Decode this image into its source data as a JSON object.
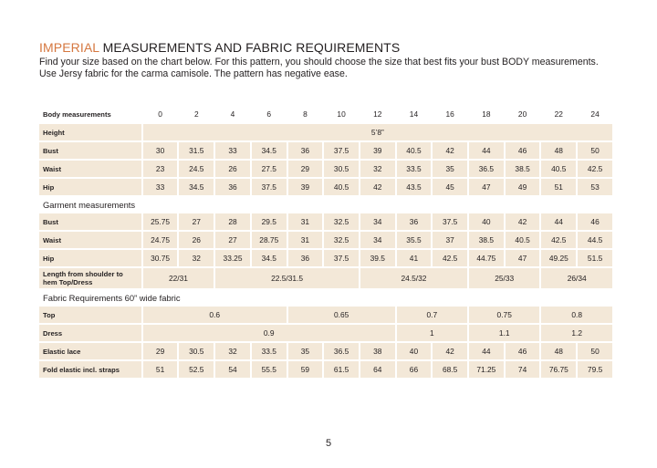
{
  "header": {
    "brand": "IMPERIAL",
    "title_rest": " MEASUREMENTS AND FABRIC REQUIREMENTS",
    "intro_line1": "Find your size based on the chart below. For this pattern, you should choose the size that best fits your bust BODY measurements.",
    "intro_line2": "Use Jersy fabric for the carma camisole. The pattern has negative ease."
  },
  "table": {
    "body_label": "Body measurements",
    "sizes": [
      "0",
      "2",
      "4",
      "6",
      "8",
      "10",
      "12",
      "14",
      "16",
      "18",
      "20",
      "22",
      "24"
    ],
    "height_label": "Height",
    "height_value": "5’8”",
    "bust_label": "Bust",
    "bust": [
      "30",
      "31.5",
      "33",
      "34.5",
      "36",
      "37.5",
      "39",
      "40.5",
      "42",
      "44",
      "46",
      "48",
      "50"
    ],
    "waist_label": "Waist",
    "waist": [
      "23",
      "24.5",
      "26",
      "27.5",
      "29",
      "30.5",
      "32",
      "33.5",
      "35",
      "36.5",
      "38.5",
      "40.5",
      "42.5"
    ],
    "hip_label": "Hip",
    "hip": [
      "33",
      "34.5",
      "36",
      "37.5",
      "39",
      "40.5",
      "42",
      "43.5",
      "45",
      "47",
      "49",
      "51",
      "53"
    ],
    "garment_label": "Garment measurements",
    "g_bust_label": "Bust",
    "g_bust": [
      "25.75",
      "27",
      "28",
      "29.5",
      "31",
      "32.5",
      "34",
      "36",
      "37.5",
      "40",
      "42",
      "44",
      "46"
    ],
    "g_waist_label": "Waist",
    "g_waist": [
      "24.75",
      "26",
      "27",
      "28.75",
      "31",
      "32.5",
      "34",
      "35.5",
      "37",
      "38.5",
      "40.5",
      "42.5",
      "44.5"
    ],
    "g_hip_label": "Hip",
    "g_hip": [
      "30.75",
      "32",
      "33.25",
      "34.5",
      "36",
      "37.5",
      "39.5",
      "41",
      "42.5",
      "44.75",
      "47",
      "49.25",
      "51.5"
    ],
    "length_label_1": "Length from shoulder to",
    "length_label_2": "hem Top/Dress",
    "length": [
      "22/31",
      "22.5/31.5",
      "24.5/32",
      "25/33",
      "26/34"
    ],
    "fabric_label": "Fabric Requirements 60” wide fabric",
    "top_label": "Top",
    "top": [
      "0.6",
      "0.65",
      "0.7",
      "0.75",
      "0.8"
    ],
    "dress_label": "Dress",
    "dress": [
      "0.9",
      "1",
      "1.1",
      "1.2"
    ],
    "lace_label": "Elastic lace",
    "lace": [
      "29",
      "30.5",
      "32",
      "33.5",
      "35",
      "36.5",
      "38",
      "40",
      "42",
      "44",
      "46",
      "48",
      "50"
    ],
    "fold_label": "Fold elastic incl. straps",
    "fold": [
      "51",
      "52.5",
      "54",
      "55.5",
      "59",
      "61.5",
      "64",
      "66",
      "68.5",
      "71.25",
      "74",
      "76.75",
      "79.5"
    ]
  },
  "page_number": "5"
}
